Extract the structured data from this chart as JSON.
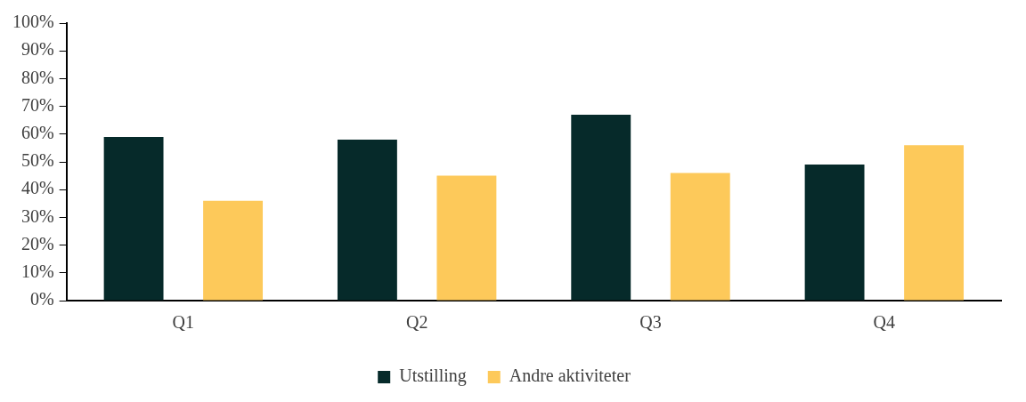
{
  "chart_data": {
    "type": "bar",
    "categories": [
      "Q1",
      "Q2",
      "Q3",
      "Q4"
    ],
    "series": [
      {
        "name": "Utstilling",
        "color": "#062a2a",
        "values": [
          59,
          58,
          67,
          49
        ]
      },
      {
        "name": "Andre aktiviteter",
        "color": "#fdc95a",
        "values": [
          36,
          45,
          46,
          56
        ]
      }
    ],
    "ylim": [
      0,
      100
    ],
    "yticks": [
      {
        "value": 0,
        "label": "0%"
      },
      {
        "value": 10,
        "label": "10%"
      },
      {
        "value": 20,
        "label": "20%"
      },
      {
        "value": 30,
        "label": "30%"
      },
      {
        "value": 40,
        "label": "40%"
      },
      {
        "value": 50,
        "label": "50%"
      },
      {
        "value": 60,
        "label": "60%"
      },
      {
        "value": 70,
        "label": "70%"
      },
      {
        "value": 80,
        "label": "80%"
      },
      {
        "value": 90,
        "label": "90%"
      },
      {
        "value": 100,
        "label": "100%"
      }
    ],
    "grid": false,
    "legend": "bottom"
  }
}
